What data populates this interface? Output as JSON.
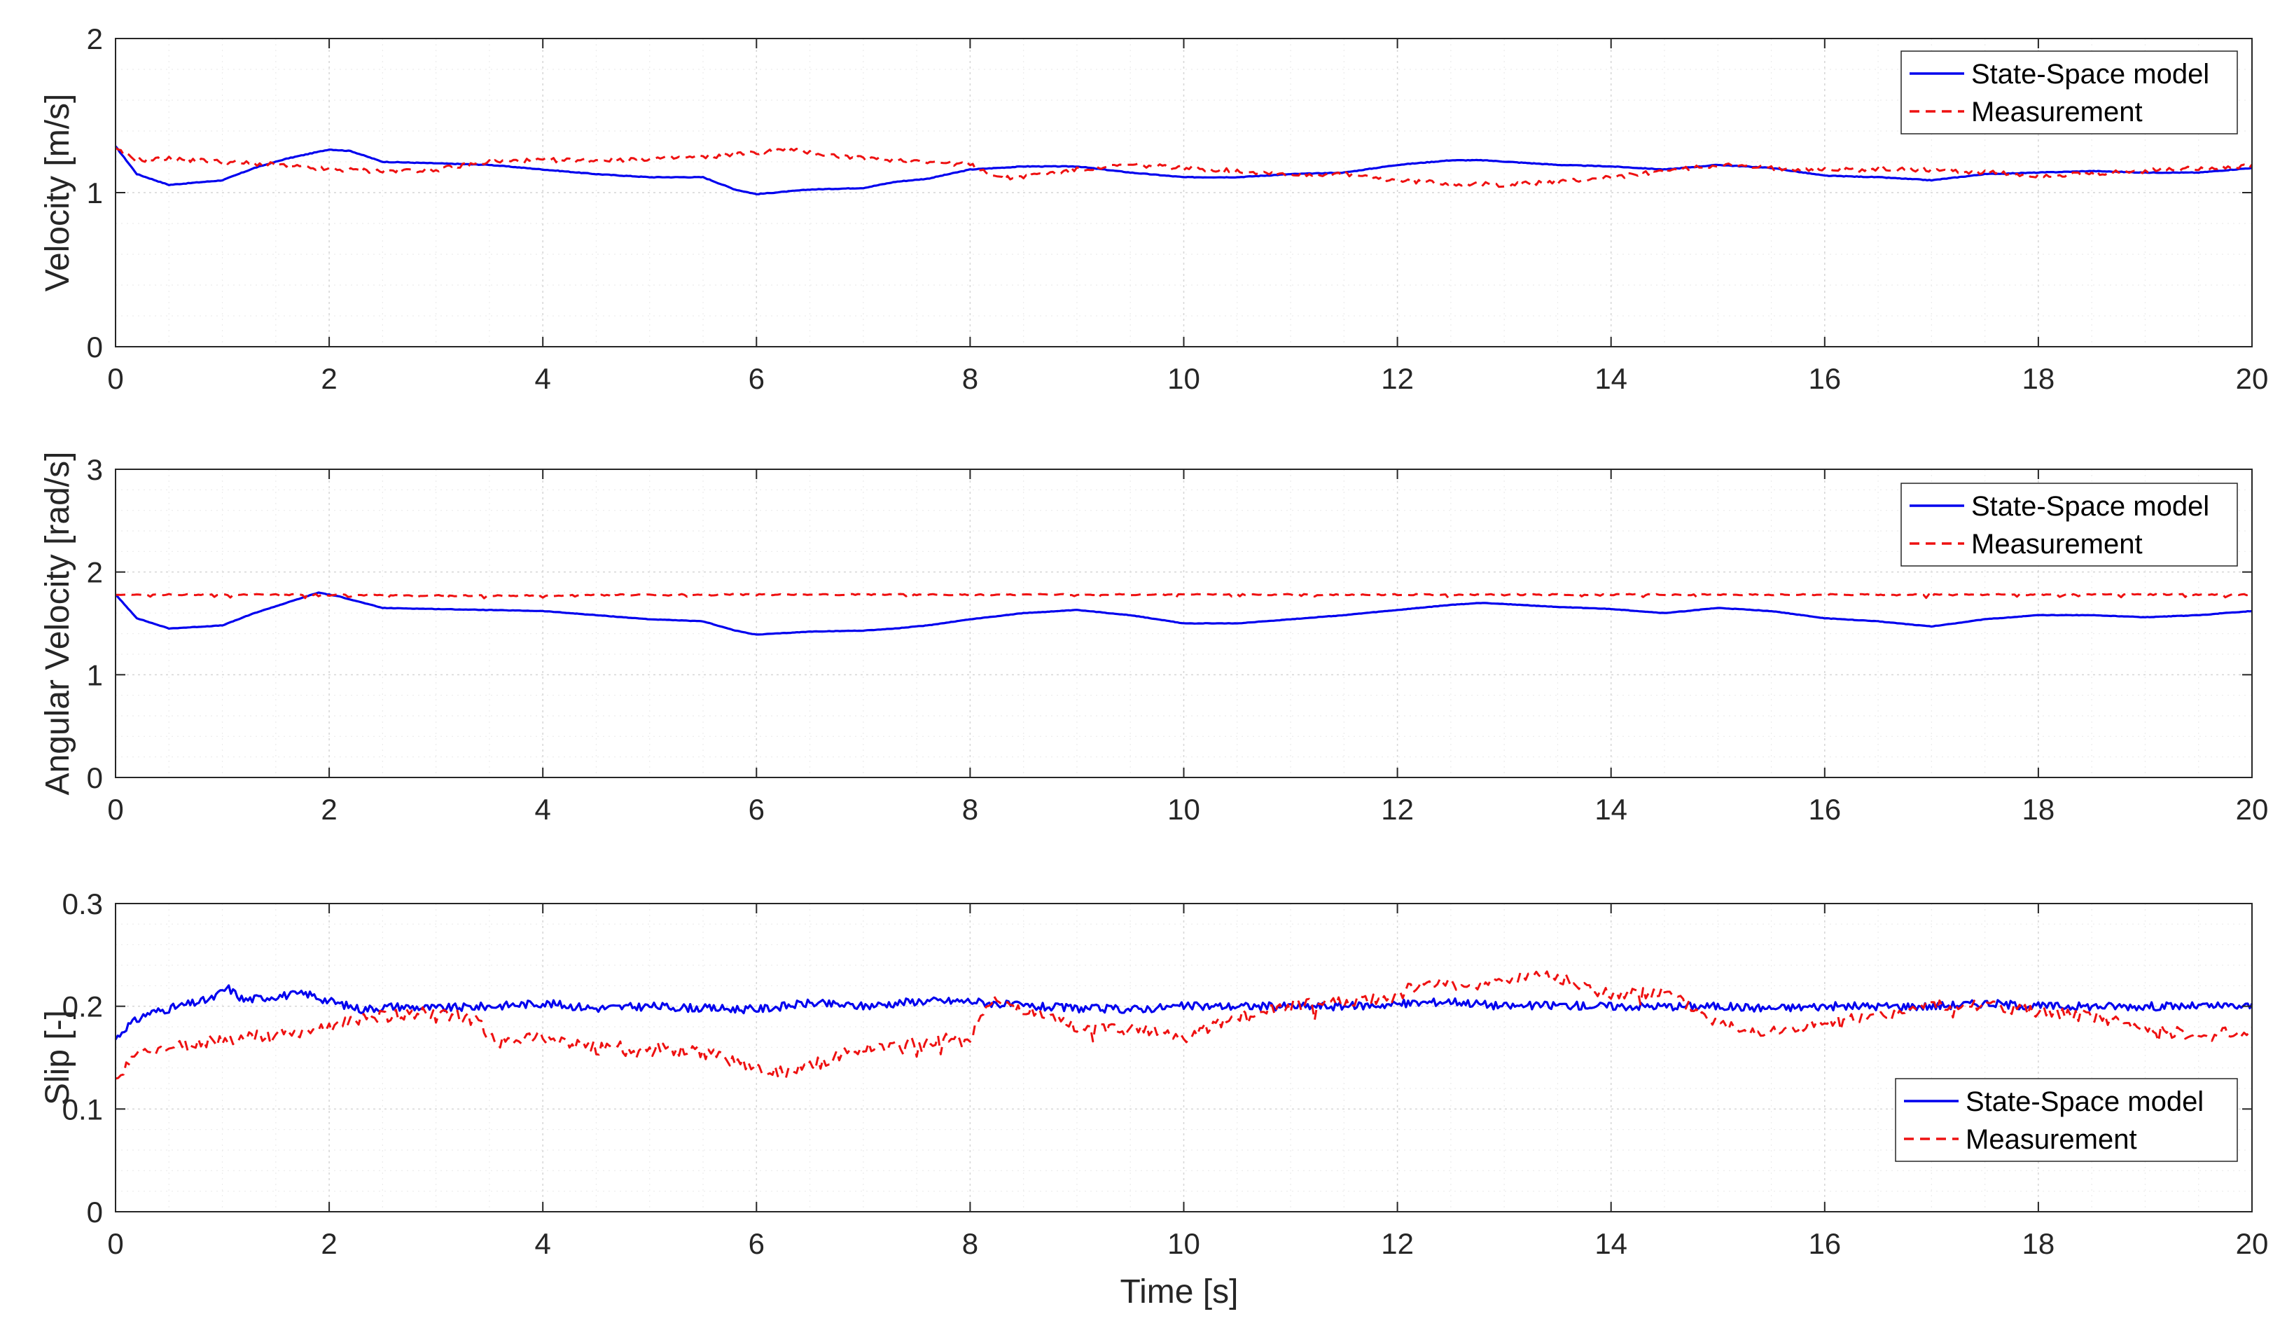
{
  "figure": {
    "xlabel": "Time [s]",
    "colors": {
      "model": "#0000ee",
      "measurement": "#ee1111",
      "axis": "#262626"
    }
  },
  "chart_data": [
    {
      "type": "line",
      "title": "",
      "xlabel": "",
      "ylabel": "Velocity [m/s]",
      "xlim": [
        0,
        20
      ],
      "ylim": [
        0,
        2
      ],
      "xticks": [
        0,
        2,
        4,
        6,
        8,
        10,
        12,
        14,
        16,
        18,
        20
      ],
      "yticks": [
        0,
        1,
        2
      ],
      "grid": true,
      "legend_position": "top-right",
      "series": [
        {
          "name": "State-Space model",
          "style": "solid",
          "x": [
            0,
            0.2,
            0.5,
            1,
            1.3,
            1.6,
            2,
            2.2,
            2.5,
            3,
            3.5,
            4,
            4.5,
            5,
            5.5,
            5.8,
            6,
            6.5,
            7,
            7.3,
            7.6,
            8,
            8.5,
            9,
            9.5,
            10,
            10.5,
            11,
            11.5,
            12,
            12.5,
            12.8,
            13.5,
            14,
            14.5,
            15,
            15.5,
            16,
            16.5,
            17,
            17.5,
            18,
            18.5,
            19,
            19.5,
            20
          ],
          "values": [
            1.3,
            1.12,
            1.05,
            1.08,
            1.16,
            1.22,
            1.28,
            1.27,
            1.2,
            1.19,
            1.18,
            1.15,
            1.12,
            1.1,
            1.1,
            1.02,
            0.99,
            1.02,
            1.03,
            1.07,
            1.09,
            1.15,
            1.17,
            1.17,
            1.13,
            1.1,
            1.1,
            1.12,
            1.13,
            1.18,
            1.21,
            1.21,
            1.18,
            1.17,
            1.15,
            1.18,
            1.16,
            1.11,
            1.1,
            1.08,
            1.12,
            1.13,
            1.14,
            1.13,
            1.13,
            1.16
          ]
        },
        {
          "name": "Measurement",
          "style": "dashed",
          "x": [
            0,
            0.2,
            0.5,
            1,
            1.5,
            2,
            2.5,
            3,
            3.5,
            4,
            4.5,
            5,
            5.5,
            6,
            6.3,
            6.6,
            7,
            7.5,
            8,
            8.3,
            8.8,
            9,
            9.5,
            10,
            10.5,
            11,
            11.5,
            12,
            12.5,
            13,
            13.5,
            14,
            14.5,
            15,
            15.5,
            16,
            16.5,
            17,
            17.5,
            18,
            18.5,
            19,
            19.5,
            20
          ],
          "values": [
            1.28,
            1.21,
            1.22,
            1.2,
            1.18,
            1.15,
            1.14,
            1.15,
            1.2,
            1.21,
            1.21,
            1.22,
            1.23,
            1.26,
            1.28,
            1.25,
            1.22,
            1.21,
            1.18,
            1.09,
            1.13,
            1.15,
            1.18,
            1.16,
            1.14,
            1.12,
            1.12,
            1.08,
            1.06,
            1.05,
            1.07,
            1.1,
            1.14,
            1.18,
            1.16,
            1.15,
            1.15,
            1.15,
            1.13,
            1.11,
            1.12,
            1.14,
            1.16,
            1.17
          ]
        }
      ]
    },
    {
      "type": "line",
      "title": "",
      "xlabel": "",
      "ylabel": "Angular Velocity [rad/s]",
      "xlim": [
        0,
        20
      ],
      "ylim": [
        0,
        3
      ],
      "xticks": [
        0,
        2,
        4,
        6,
        8,
        10,
        12,
        14,
        16,
        18,
        20
      ],
      "yticks": [
        0,
        1,
        2,
        3
      ],
      "grid": true,
      "legend_position": "top-right",
      "series": [
        {
          "name": "State-Space model",
          "style": "solid",
          "x": [
            0,
            0.2,
            0.5,
            1,
            1.3,
            1.6,
            1.9,
            2.1,
            2.5,
            3,
            3.5,
            4,
            4.5,
            5,
            5.5,
            5.8,
            6,
            6.5,
            7,
            7.3,
            7.6,
            8,
            8.5,
            9,
            9.5,
            10,
            10.5,
            11,
            11.5,
            12,
            12.5,
            12.8,
            13.5,
            14,
            14.5,
            15,
            15.5,
            16,
            16.5,
            17,
            17.5,
            18,
            18.5,
            19,
            19.5,
            20
          ],
          "values": [
            1.78,
            1.55,
            1.45,
            1.48,
            1.6,
            1.7,
            1.8,
            1.76,
            1.65,
            1.64,
            1.63,
            1.62,
            1.58,
            1.54,
            1.52,
            1.43,
            1.39,
            1.42,
            1.43,
            1.45,
            1.48,
            1.54,
            1.6,
            1.63,
            1.58,
            1.5,
            1.5,
            1.54,
            1.58,
            1.63,
            1.68,
            1.7,
            1.66,
            1.64,
            1.6,
            1.65,
            1.62,
            1.55,
            1.52,
            1.47,
            1.54,
            1.58,
            1.58,
            1.56,
            1.58,
            1.62
          ]
        },
        {
          "name": "Measurement",
          "style": "dashed",
          "x": [
            0,
            1,
            2,
            3,
            4,
            5,
            6,
            7,
            8,
            9,
            10,
            11,
            12,
            13,
            14,
            15,
            16,
            17,
            18,
            19,
            20
          ],
          "values": [
            1.78,
            1.78,
            1.78,
            1.77,
            1.77,
            1.78,
            1.78,
            1.78,
            1.78,
            1.78,
            1.78,
            1.78,
            1.78,
            1.78,
            1.78,
            1.78,
            1.78,
            1.78,
            1.78,
            1.78,
            1.78
          ]
        }
      ]
    },
    {
      "type": "line",
      "title": "",
      "xlabel": "Time [s]",
      "ylabel": "Slip [-]",
      "xlim": [
        0,
        20
      ],
      "ylim": [
        0,
        0.3
      ],
      "xticks": [
        0,
        2,
        4,
        6,
        8,
        10,
        12,
        14,
        16,
        18,
        20
      ],
      "yticks": [
        0,
        0.1,
        0.2,
        0.3
      ],
      "grid": true,
      "legend_position": "bottom-right",
      "series": [
        {
          "name": "State-Space model",
          "style": "solid",
          "x": [
            0,
            0.1,
            0.3,
            0.6,
            0.9,
            1.05,
            1.2,
            1.5,
            1.8,
            2,
            2.3,
            2.6,
            3,
            3.5,
            4,
            4.5,
            5,
            5.5,
            6,
            6.5,
            7,
            7.5,
            8,
            8.5,
            9,
            9.5,
            10,
            10.5,
            11,
            11.5,
            12,
            12.5,
            13,
            13.5,
            14,
            14.5,
            15,
            15.5,
            16,
            16.5,
            17,
            17.5,
            18,
            18.5,
            19,
            19.5,
            20
          ],
          "values": [
            0.168,
            0.18,
            0.193,
            0.2,
            0.207,
            0.218,
            0.206,
            0.21,
            0.212,
            0.205,
            0.197,
            0.2,
            0.198,
            0.2,
            0.203,
            0.198,
            0.2,
            0.198,
            0.197,
            0.203,
            0.2,
            0.205,
            0.205,
            0.2,
            0.198,
            0.197,
            0.2,
            0.2,
            0.2,
            0.2,
            0.202,
            0.205,
            0.2,
            0.201,
            0.2,
            0.2,
            0.2,
            0.198,
            0.2,
            0.2,
            0.2,
            0.203,
            0.2,
            0.2,
            0.2,
            0.2,
            0.2
          ]
        },
        {
          "name": "Measurement",
          "style": "dashed",
          "x": [
            0,
            0.2,
            0.5,
            1,
            1.5,
            2,
            2.5,
            3,
            3.4,
            3.6,
            4,
            4.5,
            5,
            5.5,
            6,
            6.3,
            6.6,
            7,
            7.5,
            8,
            8.2,
            8.5,
            9,
            9.5,
            10,
            10.5,
            11,
            11.5,
            12,
            12.2,
            12.6,
            13,
            13.3,
            13.6,
            14,
            14.5,
            15,
            15.5,
            16,
            16.5,
            17,
            17.5,
            18,
            18.5,
            19,
            19.5,
            20
          ],
          "values": [
            0.125,
            0.155,
            0.16,
            0.168,
            0.172,
            0.18,
            0.19,
            0.195,
            0.185,
            0.165,
            0.17,
            0.16,
            0.16,
            0.155,
            0.14,
            0.135,
            0.145,
            0.16,
            0.165,
            0.17,
            0.205,
            0.198,
            0.18,
            0.18,
            0.17,
            0.19,
            0.2,
            0.205,
            0.21,
            0.223,
            0.22,
            0.225,
            0.233,
            0.225,
            0.21,
            0.215,
            0.185,
            0.175,
            0.185,
            0.19,
            0.2,
            0.2,
            0.195,
            0.19,
            0.18,
            0.17,
            0.178
          ]
        }
      ]
    }
  ]
}
